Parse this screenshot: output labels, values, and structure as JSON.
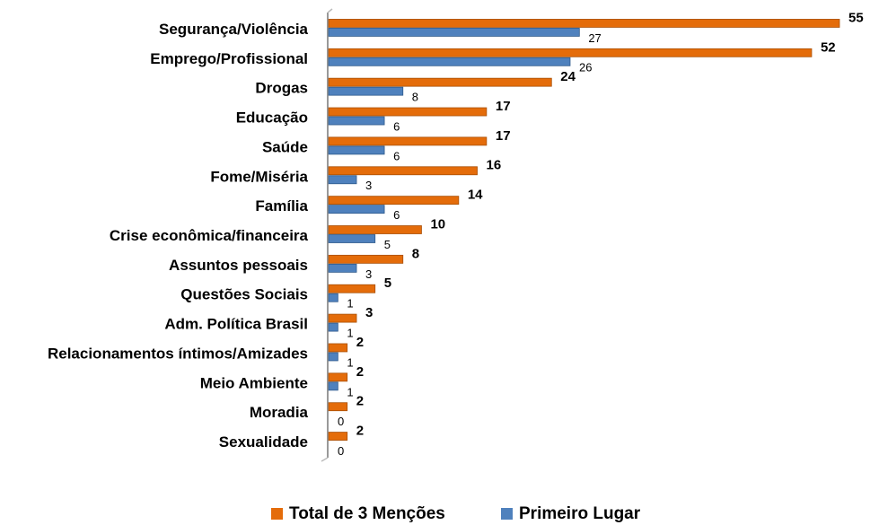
{
  "chart_data": {
    "type": "hbar",
    "categories": [
      "Segurança/Violência",
      "Emprego/Profissional",
      "Drogas",
      "Educação",
      "Saúde",
      "Fome/Miséria",
      "Família",
      "Crise econômica/financeira",
      "Assuntos pessoais",
      "Questões Sociais",
      "Adm. Política Brasil",
      "Relacionamentos íntimos/Amizades",
      "Meio Ambiente",
      "Moradia",
      "Sexualidade"
    ],
    "series": [
      {
        "name": "Total de 3 Menções",
        "color": "#e46c0a",
        "values": [
          55,
          52,
          24,
          17,
          17,
          16,
          14,
          10,
          8,
          5,
          3,
          2,
          2,
          2,
          2
        ]
      },
      {
        "name": "Primeiro Lugar",
        "color": "#4f81bd",
        "values": [
          27,
          26,
          8,
          6,
          6,
          3,
          6,
          5,
          3,
          1,
          1,
          1,
          1,
          0,
          0
        ]
      }
    ],
    "xlim": [
      0,
      55
    ],
    "legend": "bottom"
  }
}
